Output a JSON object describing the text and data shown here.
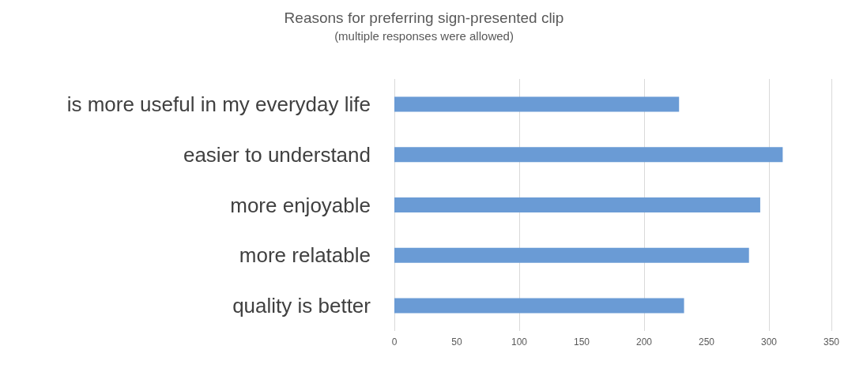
{
  "chart_data": {
    "type": "bar",
    "orientation": "horizontal",
    "title": "Reasons for preferring sign-presented clip",
    "subtitle": "(multiple responses were allowed)",
    "categories": [
      "is more useful in my everyday life",
      "easier to understand",
      "more enjoyable",
      "more relatable",
      "quality is better"
    ],
    "values": [
      228,
      311,
      293,
      284,
      232
    ],
    "color": "#6a9bd5",
    "xlim": [
      0,
      350
    ],
    "xticks": [
      0,
      50,
      100,
      150,
      200,
      250,
      300,
      350
    ],
    "grid": "x"
  }
}
